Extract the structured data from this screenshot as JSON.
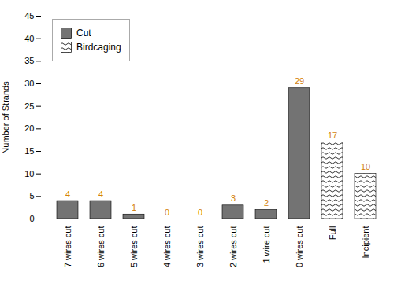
{
  "chart_data": {
    "type": "bar",
    "categories": [
      "7 wires cut",
      "6 wires cut",
      "5 wires cut",
      "4 wires cut",
      "3 wires cut",
      "2 wires cut",
      "1 wire cut",
      "0 wires cut",
      "Full",
      "Incipient"
    ],
    "series": [
      {
        "name": "Cut",
        "color": "#737373",
        "values": [
          4,
          4,
          1,
          0,
          0,
          3,
          2,
          29,
          null,
          null
        ]
      },
      {
        "name": "Birdcaging",
        "color": "#ffffff",
        "values": [
          null,
          null,
          null,
          null,
          null,
          null,
          null,
          null,
          17,
          10
        ]
      }
    ],
    "ylabel": "Number of Strands",
    "ylim": [
      0,
      45
    ],
    "yticks": [
      0,
      5,
      10,
      15,
      20,
      25,
      30,
      35,
      40,
      45
    ],
    "grid": false,
    "legend": "upper left",
    "data_labels": true
  }
}
